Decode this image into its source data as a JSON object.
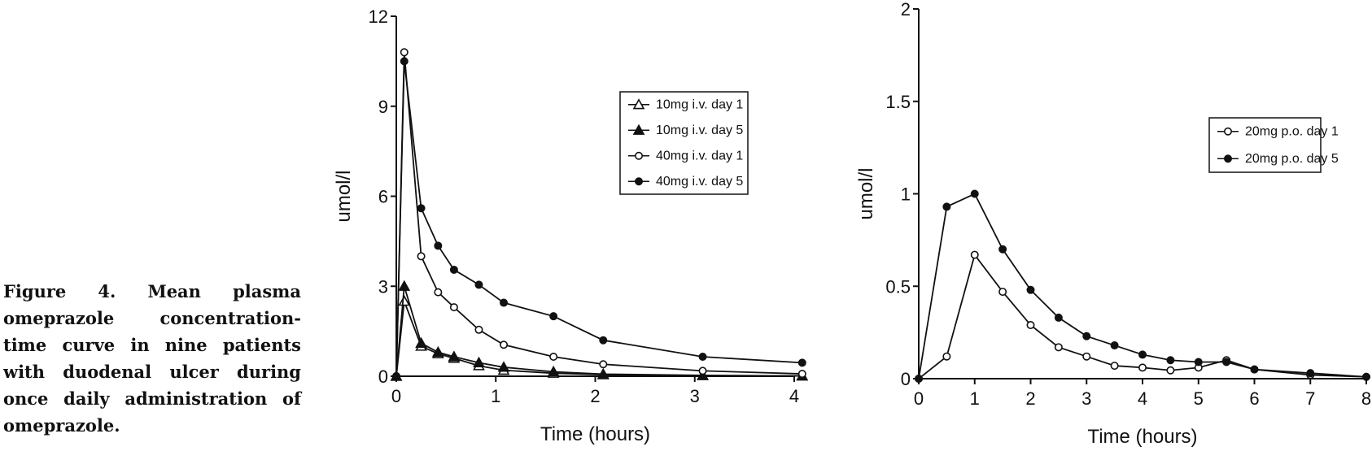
{
  "caption": "Figure 4. Mean plasma omeprazole concentration-time curve in nine patients with duodenal ulcer during once daily administration of omeprazole.",
  "chart_data": [
    {
      "type": "line",
      "xlabel": "Time (hours)",
      "ylabel": "umol/l",
      "xlim": [
        0,
        4
      ],
      "ylim": [
        0,
        12
      ],
      "xticks": [
        "0",
        "1",
        "2",
        "3",
        "4"
      ],
      "yticks": [
        "0",
        "3",
        "6",
        "9",
        "12"
      ],
      "legend_position": "top-right",
      "series": [
        {
          "name": "10mg i.v. day 1",
          "marker": "triangle-open",
          "x": [
            0,
            0.08,
            0.25,
            0.42,
            0.58,
            0.83,
            1.08,
            1.58,
            2.08,
            3.08,
            4.08
          ],
          "y": [
            0,
            2.5,
            1.0,
            0.75,
            0.6,
            0.35,
            0.2,
            0.1,
            0.05,
            0.02,
            0.01
          ]
        },
        {
          "name": "10mg i.v. day 5",
          "marker": "triangle-filled",
          "x": [
            0,
            0.08,
            0.25,
            0.42,
            0.58,
            0.83,
            1.08,
            1.58,
            2.08,
            3.08,
            4.08
          ],
          "y": [
            0,
            3.0,
            1.1,
            0.8,
            0.65,
            0.45,
            0.3,
            0.15,
            0.07,
            0.03,
            0.01
          ]
        },
        {
          "name": "40mg i.v. day 1",
          "marker": "circle-open",
          "x": [
            0,
            0.08,
            0.25,
            0.42,
            0.58,
            0.83,
            1.08,
            1.58,
            2.08,
            3.08,
            4.08
          ],
          "y": [
            0,
            10.8,
            4.0,
            2.8,
            2.3,
            1.55,
            1.05,
            0.65,
            0.4,
            0.18,
            0.08
          ]
        },
        {
          "name": "40mg i.v. day 5",
          "marker": "circle-filled",
          "x": [
            0,
            0.08,
            0.25,
            0.42,
            0.58,
            0.83,
            1.08,
            1.58,
            2.08,
            3.08,
            4.08
          ],
          "y": [
            0,
            10.5,
            5.6,
            4.35,
            3.55,
            3.05,
            2.45,
            2.0,
            1.2,
            0.65,
            0.45
          ]
        }
      ]
    },
    {
      "type": "line",
      "xlabel": "Time (hours)",
      "ylabel": "umol/l",
      "xlim": [
        0,
        8
      ],
      "ylim": [
        0,
        2
      ],
      "xticks": [
        "0",
        "1",
        "2",
        "3",
        "4",
        "5",
        "6",
        "7",
        "8"
      ],
      "yticks": [
        "0",
        "0.5",
        "1",
        "1.5",
        "2"
      ],
      "legend_position": "top-right",
      "series": [
        {
          "name": "20mg p.o. day 1",
          "marker": "circle-open",
          "x": [
            0,
            0.5,
            1,
            1.5,
            2,
            2.5,
            3,
            3.5,
            4,
            4.5,
            5,
            5.5,
            6,
            7,
            8
          ],
          "y": [
            0,
            0.12,
            0.67,
            0.47,
            0.29,
            0.17,
            0.12,
            0.07,
            0.06,
            0.045,
            0.06,
            0.1,
            0.05,
            0.02,
            0.01
          ]
        },
        {
          "name": "20mg p.o. day 5",
          "marker": "circle-filled",
          "x": [
            0,
            0.5,
            1,
            1.5,
            2,
            2.5,
            3,
            3.5,
            4,
            4.5,
            5,
            5.5,
            6,
            7,
            8
          ],
          "y": [
            0,
            0.93,
            1.0,
            0.7,
            0.48,
            0.33,
            0.23,
            0.18,
            0.13,
            0.1,
            0.09,
            0.09,
            0.05,
            0.03,
            0.01
          ]
        }
      ]
    }
  ]
}
